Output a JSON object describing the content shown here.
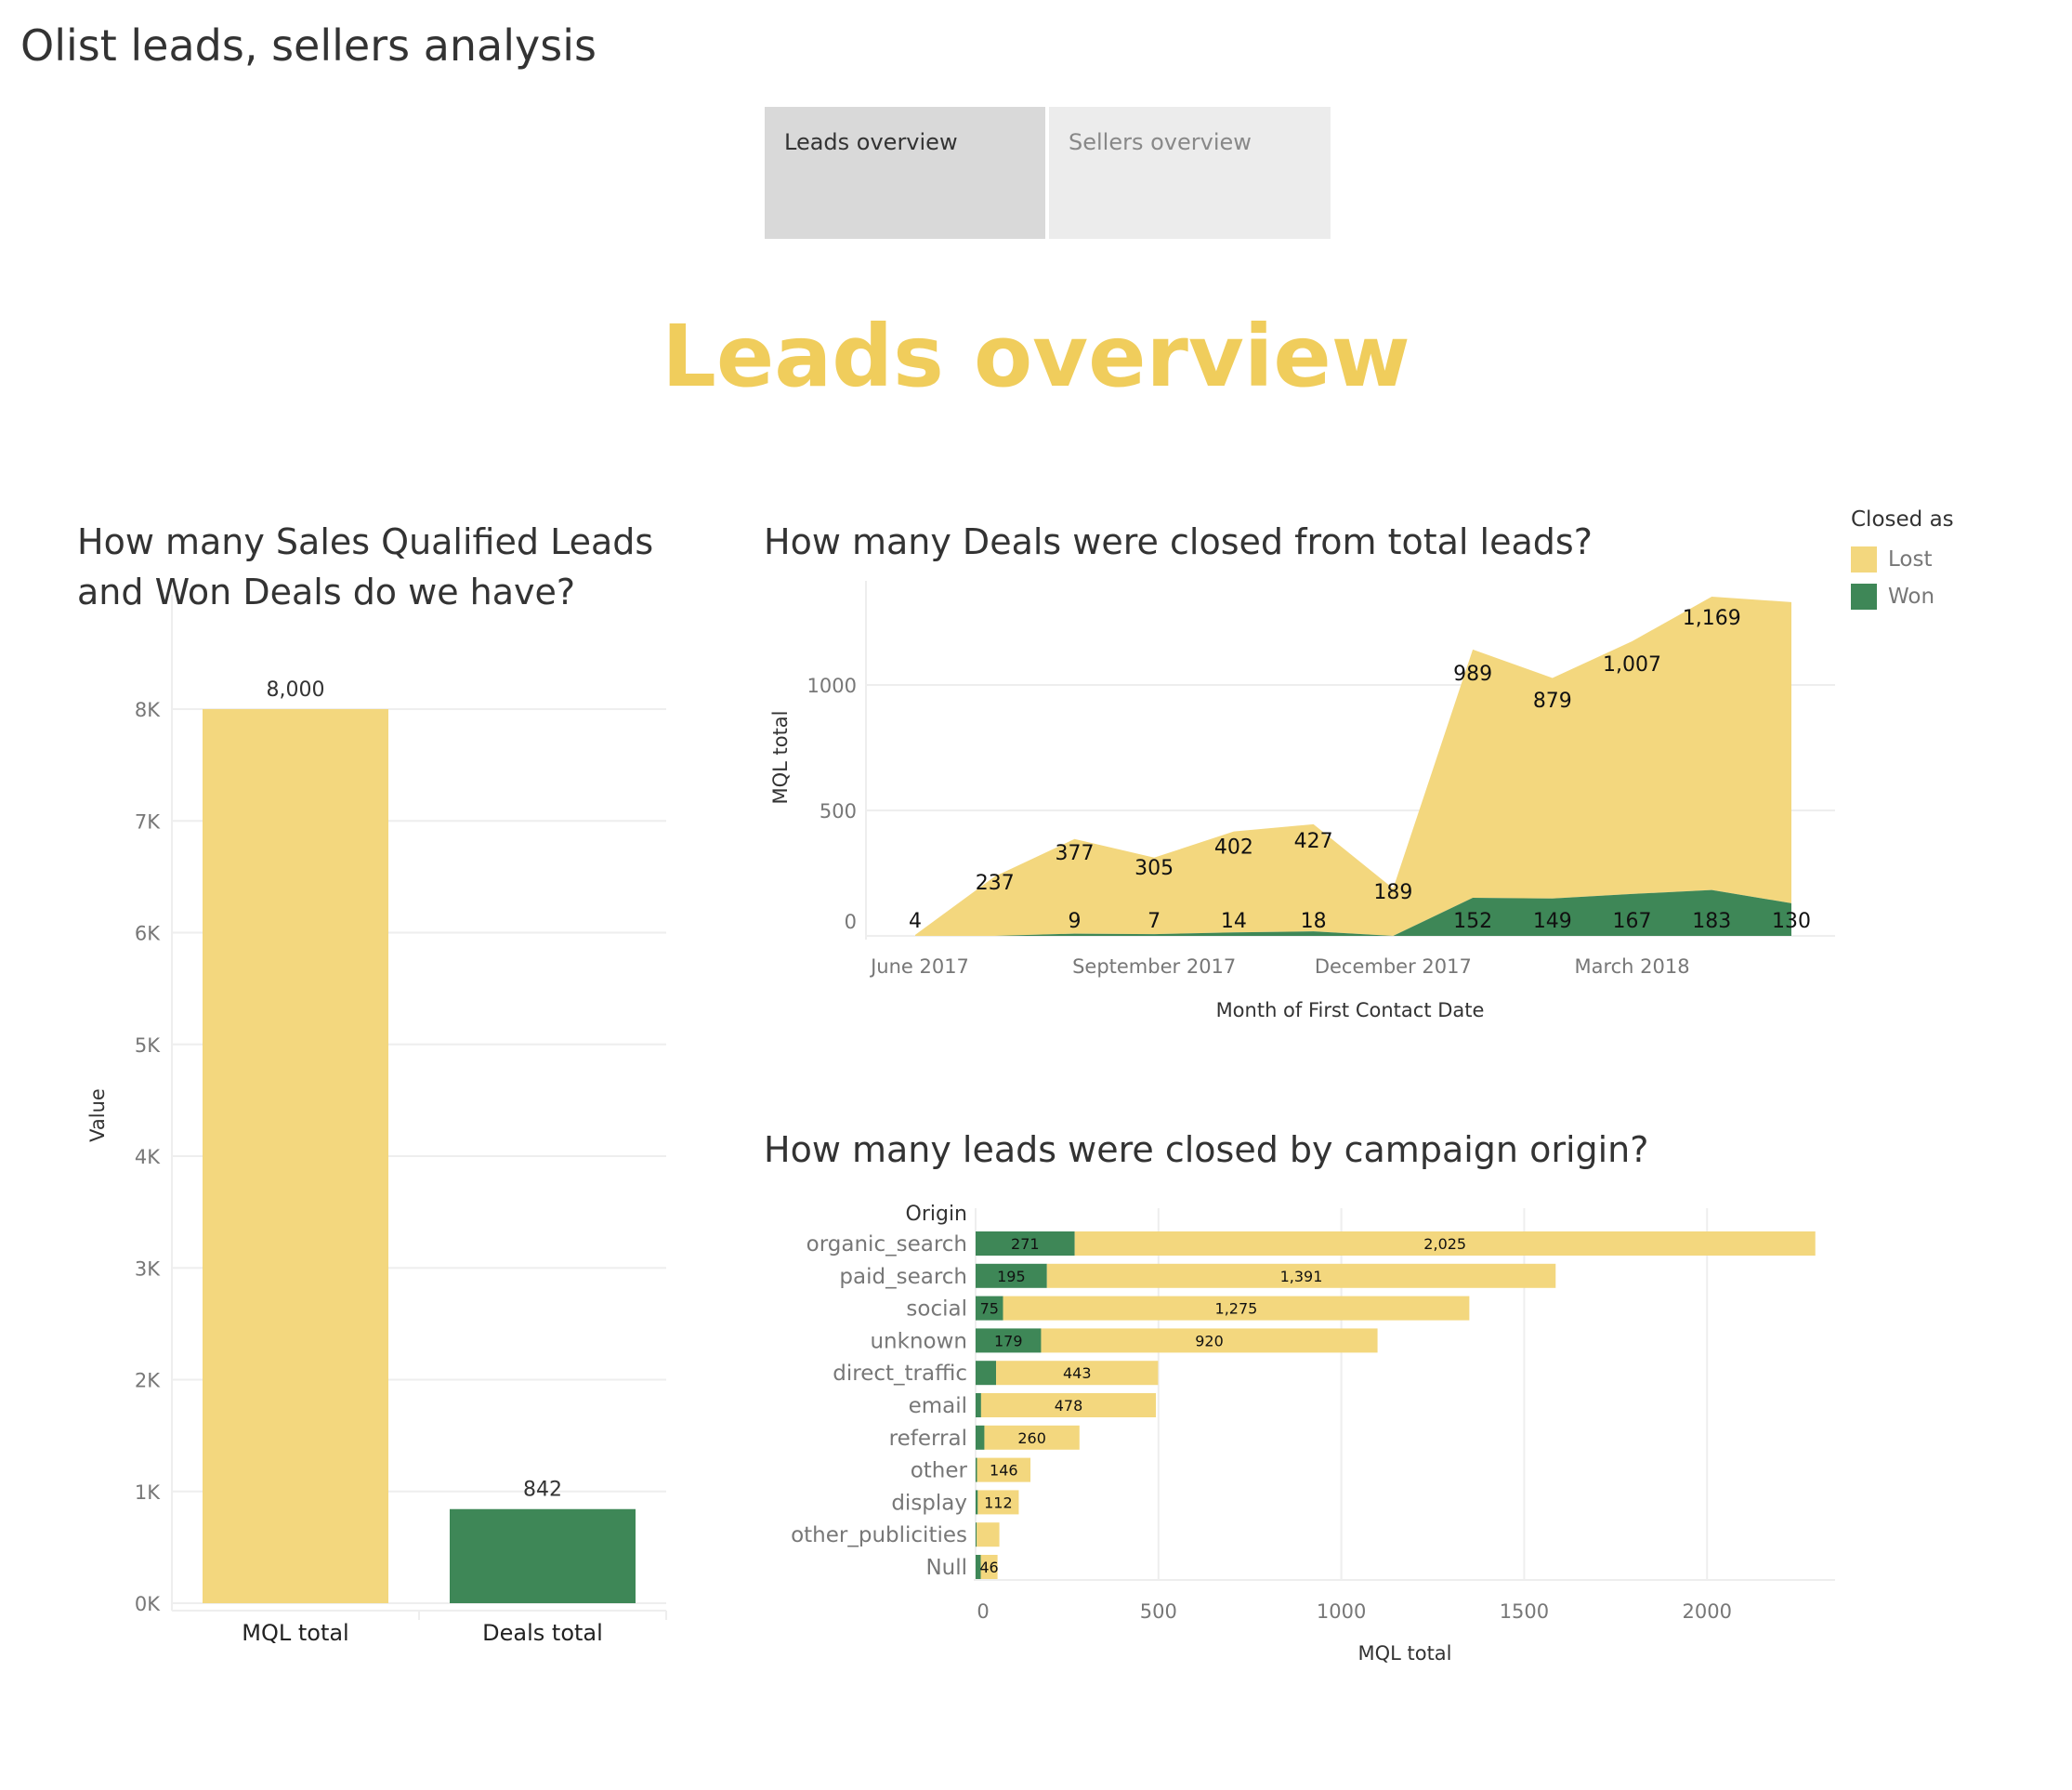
{
  "app": {
    "title": "Olist leads, sellers analysis"
  },
  "tabs": [
    {
      "label": "Leads overview",
      "active": true
    },
    {
      "label": "Sellers overview",
      "active": false
    }
  ],
  "page": {
    "heading": "Leads overview"
  },
  "colors": {
    "lost": "#f3d77e",
    "won": "#3e8757",
    "heading": "#f0cd5c",
    "grid": "#eeeeee"
  },
  "chart_data": [
    {
      "id": "kpi-bars",
      "type": "bar",
      "title": "How many Sales Qualified Leads and Won Deals do we have?",
      "title_lines": [
        "How many Sales Qualified Leads",
        "and Won Deals do we have?"
      ],
      "categories": [
        "MQL total",
        "Deals total"
      ],
      "values": [
        8000,
        842
      ],
      "value_labels": [
        "8,000",
        "842"
      ],
      "bar_colors": [
        "#f3d77e",
        "#3e8757"
      ],
      "xlabel": "",
      "ylabel": "Value",
      "ylim": [
        0,
        8000
      ],
      "yticks": [
        0,
        1000,
        2000,
        3000,
        4000,
        5000,
        6000,
        7000,
        8000
      ],
      "ytick_labels": [
        "0K",
        "1K",
        "2K",
        "3K",
        "4K",
        "5K",
        "6K",
        "7K",
        "8K"
      ],
      "grid": true
    },
    {
      "id": "monthly-area",
      "type": "area",
      "stacked": true,
      "title": "How many Deals were closed from total leads?",
      "xlabel": "Month of First Contact Date",
      "ylabel": "MQL total",
      "x": [
        "June 2017",
        "July 2017",
        "August 2017",
        "September 2017",
        "October 2017",
        "November 2017",
        "December 2017",
        "January 2018",
        "February 2018",
        "March 2018",
        "April 2018",
        "May 2018"
      ],
      "xtick_labels": [
        "June 2017",
        "September 2017",
        "December 2017",
        "March 2018"
      ],
      "xtick_months": [
        "June 2017",
        "September 2017",
        "December 2017",
        "March 2018"
      ],
      "series": [
        {
          "name": "Won",
          "values": [
            0,
            0,
            9,
            7,
            14,
            18,
            0,
            152,
            149,
            167,
            183,
            130
          ]
        },
        {
          "name": "Lost",
          "values": [
            4,
            237,
            377,
            305,
            402,
            427,
            189,
            989,
            879,
            1007,
            1169,
            1200
          ]
        }
      ],
      "data_labels": [
        {
          "series": "Lost",
          "month": "June 2017",
          "text": "4"
        },
        {
          "series": "Lost",
          "month": "July 2017",
          "text": "237"
        },
        {
          "series": "Lost",
          "month": "August 2017",
          "text": "377"
        },
        {
          "series": "Lost",
          "month": "September 2017",
          "text": "305"
        },
        {
          "series": "Lost",
          "month": "October 2017",
          "text": "402"
        },
        {
          "series": "Lost",
          "month": "November 2017",
          "text": "427"
        },
        {
          "series": "Lost",
          "month": "December 2017",
          "text": "189"
        },
        {
          "series": "Lost",
          "month": "January 2018",
          "text": "989"
        },
        {
          "series": "Lost",
          "month": "February 2018",
          "text": "879"
        },
        {
          "series": "Lost",
          "month": "March 2018",
          "text": "1,007"
        },
        {
          "series": "Lost",
          "month": "April 2018",
          "text": "1,169"
        },
        {
          "series": "Won",
          "month": "August 2017",
          "text": "9"
        },
        {
          "series": "Won",
          "month": "September 2017",
          "text": "7"
        },
        {
          "series": "Won",
          "month": "October 2017",
          "text": "14"
        },
        {
          "series": "Won",
          "month": "November 2017",
          "text": "18"
        },
        {
          "series": "Won",
          "month": "January 2018",
          "text": "152"
        },
        {
          "series": "Won",
          "month": "February 2018",
          "text": "149"
        },
        {
          "series": "Won",
          "month": "March 2018",
          "text": "167"
        },
        {
          "series": "Won",
          "month": "April 2018",
          "text": "183"
        },
        {
          "series": "Won",
          "month": "May 2018",
          "text": "130"
        }
      ],
      "ylim": [
        0,
        1420
      ],
      "yticks": [
        0,
        500,
        1000
      ],
      "ytick_labels": [
        "0",
        "500",
        "1000"
      ],
      "grid": true,
      "legend": {
        "title": "Closed as",
        "position": "top-right",
        "items": [
          {
            "name": "Lost",
            "color": "#f3d77e"
          },
          {
            "name": "Won",
            "color": "#3e8757"
          }
        ]
      }
    },
    {
      "id": "origin-bars",
      "type": "bar",
      "orientation": "horizontal",
      "stacked": true,
      "title": "How many leads were closed by campaign origin?",
      "category_header": "Origin",
      "categories": [
        "organic_search",
        "paid_search",
        "social",
        "unknown",
        "direct_traffic",
        "email",
        "referral",
        "other",
        "display",
        "other_publicities",
        "Null"
      ],
      "series": [
        {
          "name": "Won",
          "values": [
            271,
            195,
            75,
            179,
            56,
            15,
            24,
            4,
            6,
            3,
            14
          ],
          "labels": [
            "271",
            "195",
            "75",
            "179",
            "",
            "",
            "",
            "",
            "",
            "",
            ""
          ]
        },
        {
          "name": "Lost",
          "values": [
            2025,
            1391,
            1275,
            920,
            443,
            478,
            260,
            146,
            112,
            62,
            46
          ],
          "labels": [
            "2,025",
            "1,391",
            "1,275",
            "920",
            "443",
            "478",
            "260",
            "146",
            "112",
            "",
            "46"
          ]
        }
      ],
      "xlabel": "MQL total",
      "xlim": [
        0,
        2350
      ],
      "xticks": [
        0,
        500,
        1000,
        1500,
        2000
      ],
      "xtick_labels": [
        "0",
        "500",
        "1000",
        "1500",
        "2000"
      ],
      "grid": true
    }
  ]
}
